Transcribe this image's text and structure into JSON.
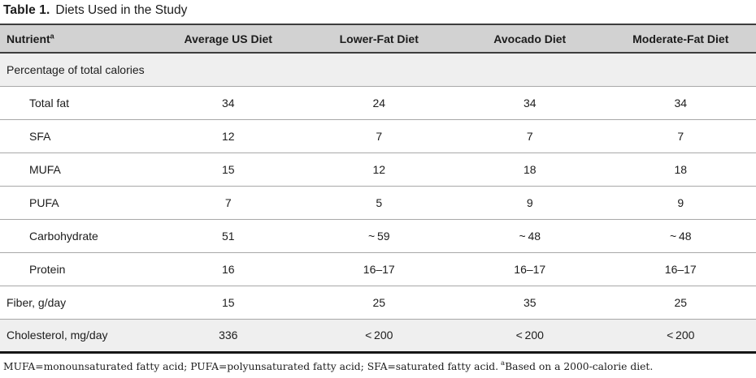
{
  "caption": {
    "label": "Table 1.",
    "text": "Diets Used in the Study"
  },
  "table": {
    "columns": [
      {
        "label": "Nutrient",
        "sup": "a"
      },
      {
        "label": "Average US Diet"
      },
      {
        "label": "Lower-Fat Diet"
      },
      {
        "label": "Avocado Diet"
      },
      {
        "label": "Moderate-Fat Diet"
      }
    ],
    "rows": [
      {
        "label": "Percentage of total calories",
        "indent": false,
        "shaded": true,
        "values": [
          "",
          "",
          "",
          ""
        ]
      },
      {
        "label": "Total fat",
        "indent": true,
        "shaded": false,
        "values": [
          "34",
          "24",
          "34",
          "34"
        ]
      },
      {
        "label": "SFA",
        "indent": true,
        "shaded": false,
        "values": [
          "12",
          "7",
          "7",
          "7"
        ]
      },
      {
        "label": "MUFA",
        "indent": true,
        "shaded": false,
        "values": [
          "15",
          "12",
          "18",
          "18"
        ]
      },
      {
        "label": "PUFA",
        "indent": true,
        "shaded": false,
        "values": [
          "7",
          "5",
          "9",
          "9"
        ]
      },
      {
        "label": "Carbohydrate",
        "indent": true,
        "shaded": false,
        "values": [
          "51",
          "~ 59",
          "~ 48",
          "~ 48"
        ]
      },
      {
        "label": "Protein",
        "indent": true,
        "shaded": false,
        "values": [
          "16",
          "16–17",
          "16–17",
          "16–17"
        ]
      },
      {
        "label": "Fiber, g/day",
        "indent": false,
        "shaded": false,
        "values": [
          "15",
          "25",
          "35",
          "25"
        ]
      },
      {
        "label": "Cholesterol, mg/day",
        "indent": false,
        "shaded": true,
        "values": [
          "336",
          "< 200",
          "< 200",
          "< 200"
        ]
      }
    ]
  },
  "footnote": {
    "abbreviations": "MUFA=monounsaturated fatty acid; PUFA=polyunsaturated fatty acid; SFA=saturated fatty acid.",
    "note_superscript": "a",
    "note": "Based on a 2000-calorie diet."
  },
  "colors": {
    "header_bg": "#d2d2d2",
    "shaded_row_bg": "#efefef",
    "rule_dark": "#3d3d3d",
    "rule_light": "#a8a8a8",
    "bottom_rule": "#161616",
    "text": "#1c1c1c"
  }
}
